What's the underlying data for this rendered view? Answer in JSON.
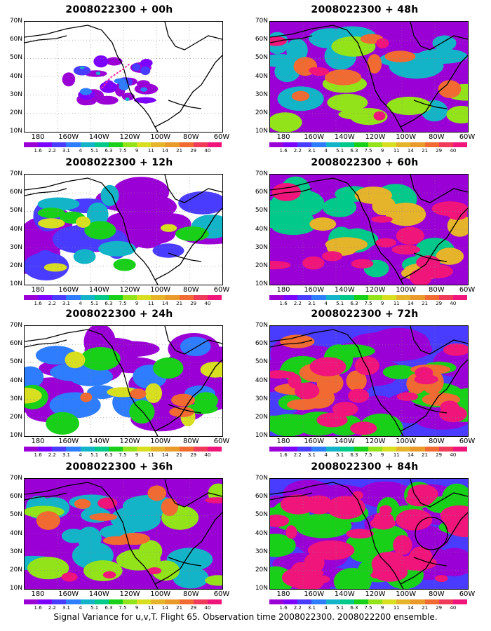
{
  "caption": "Signal Variance for u,v,T. Flight 65. Observation time 2008022300. 2008022200 ensemble.",
  "panels": [
    {
      "title": "2008022300 + 00h",
      "intensity": 0.0
    },
    {
      "title": "2008022300 + 12h",
      "intensity": 1.0
    },
    {
      "title": "2008022300 + 24h",
      "intensity": 2.0
    },
    {
      "title": "2008022300 + 36h",
      "intensity": 3.0
    },
    {
      "title": "2008022300 + 48h",
      "intensity": 3.0
    },
    {
      "title": "2008022300 + 60h",
      "intensity": 4.0
    },
    {
      "title": "2008022300 + 72h",
      "intensity": 5.0
    },
    {
      "title": "2008022300 + 84h",
      "intensity": 6.0
    }
  ],
  "lat_labels": [
    "70N",
    "60N",
    "50N",
    "40N",
    "30N",
    "20N",
    "10N"
  ],
  "lon_labels": [
    "180",
    "160W",
    "140W",
    "120W",
    "100W",
    "80W",
    "60W"
  ],
  "colorbar": {
    "labels": [
      "1.6",
      "2.2",
      "3.1",
      "4",
      "5.1",
      "6.3",
      "7.5",
      "9",
      "11",
      "14",
      "21",
      "29",
      "40"
    ],
    "colors": [
      "#9a00d6",
      "#7d00ff",
      "#4a3cff",
      "#2f7dff",
      "#13b4c8",
      "#00c98a",
      "#19d019",
      "#93e31b",
      "#d8df21",
      "#e6b42a",
      "#ea9a2a",
      "#f06a32",
      "#ef3a5a",
      "#f0157a"
    ]
  },
  "annotations": {
    "track_panel": "2008022300 + 00h",
    "circle_panel": "2008022300 + 84h"
  }
}
